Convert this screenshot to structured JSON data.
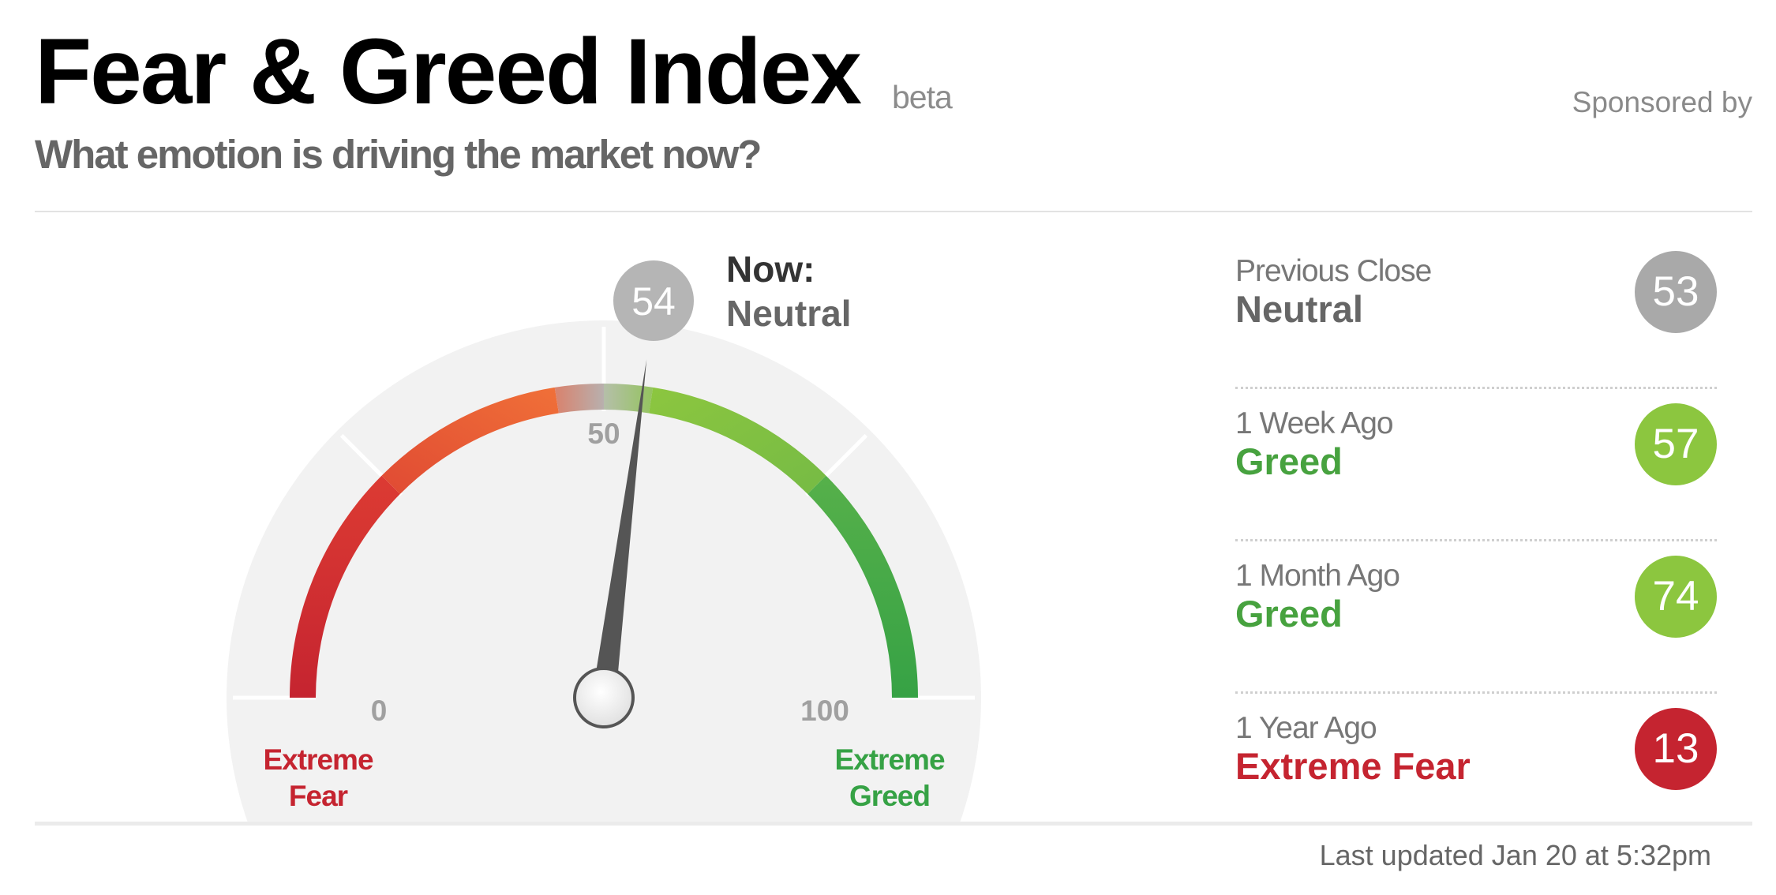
{
  "header": {
    "title": "Fear & Greed Index",
    "beta_label": "beta",
    "sponsored_label": "Sponsored by",
    "subtitle": "What emotion is driving the market now?"
  },
  "gauge": {
    "value": 54,
    "value_text": "54",
    "min": 0,
    "max": 100,
    "midpoint_label": "50",
    "min_label": "0",
    "max_label": "100",
    "left_end_label_line1": "Extreme",
    "left_end_label_line2": "Fear",
    "right_end_label_line1": "Extreme",
    "right_end_label_line2": "Greed",
    "now_label": "Now:",
    "now_status": "Neutral",
    "colors": {
      "extreme_fear": "#c52430",
      "fear": "#ee5b37",
      "neutral": "#b0b0b0",
      "greed": "#8cc63f",
      "extreme_greed": "#36a245",
      "needle": "#555555"
    }
  },
  "history": [
    {
      "label": "Previous Close",
      "status": "Neutral",
      "value": "53",
      "status_color": "#666666",
      "circle_color": "#a9a9a9"
    },
    {
      "label": "1 Week Ago",
      "status": "Greed",
      "value": "57",
      "status_color": "#47a23f",
      "circle_color": "#8cc63f"
    },
    {
      "label": "1 Month Ago",
      "status": "Greed",
      "value": "74",
      "status_color": "#47a23f",
      "circle_color": "#8cc63f"
    },
    {
      "label": "1 Year Ago",
      "status": "Extreme Fear",
      "value": "13",
      "status_color": "#c52430",
      "circle_color": "#c52430"
    }
  ],
  "footer": {
    "last_updated": "Last updated Jan 20 at 5:32pm"
  }
}
